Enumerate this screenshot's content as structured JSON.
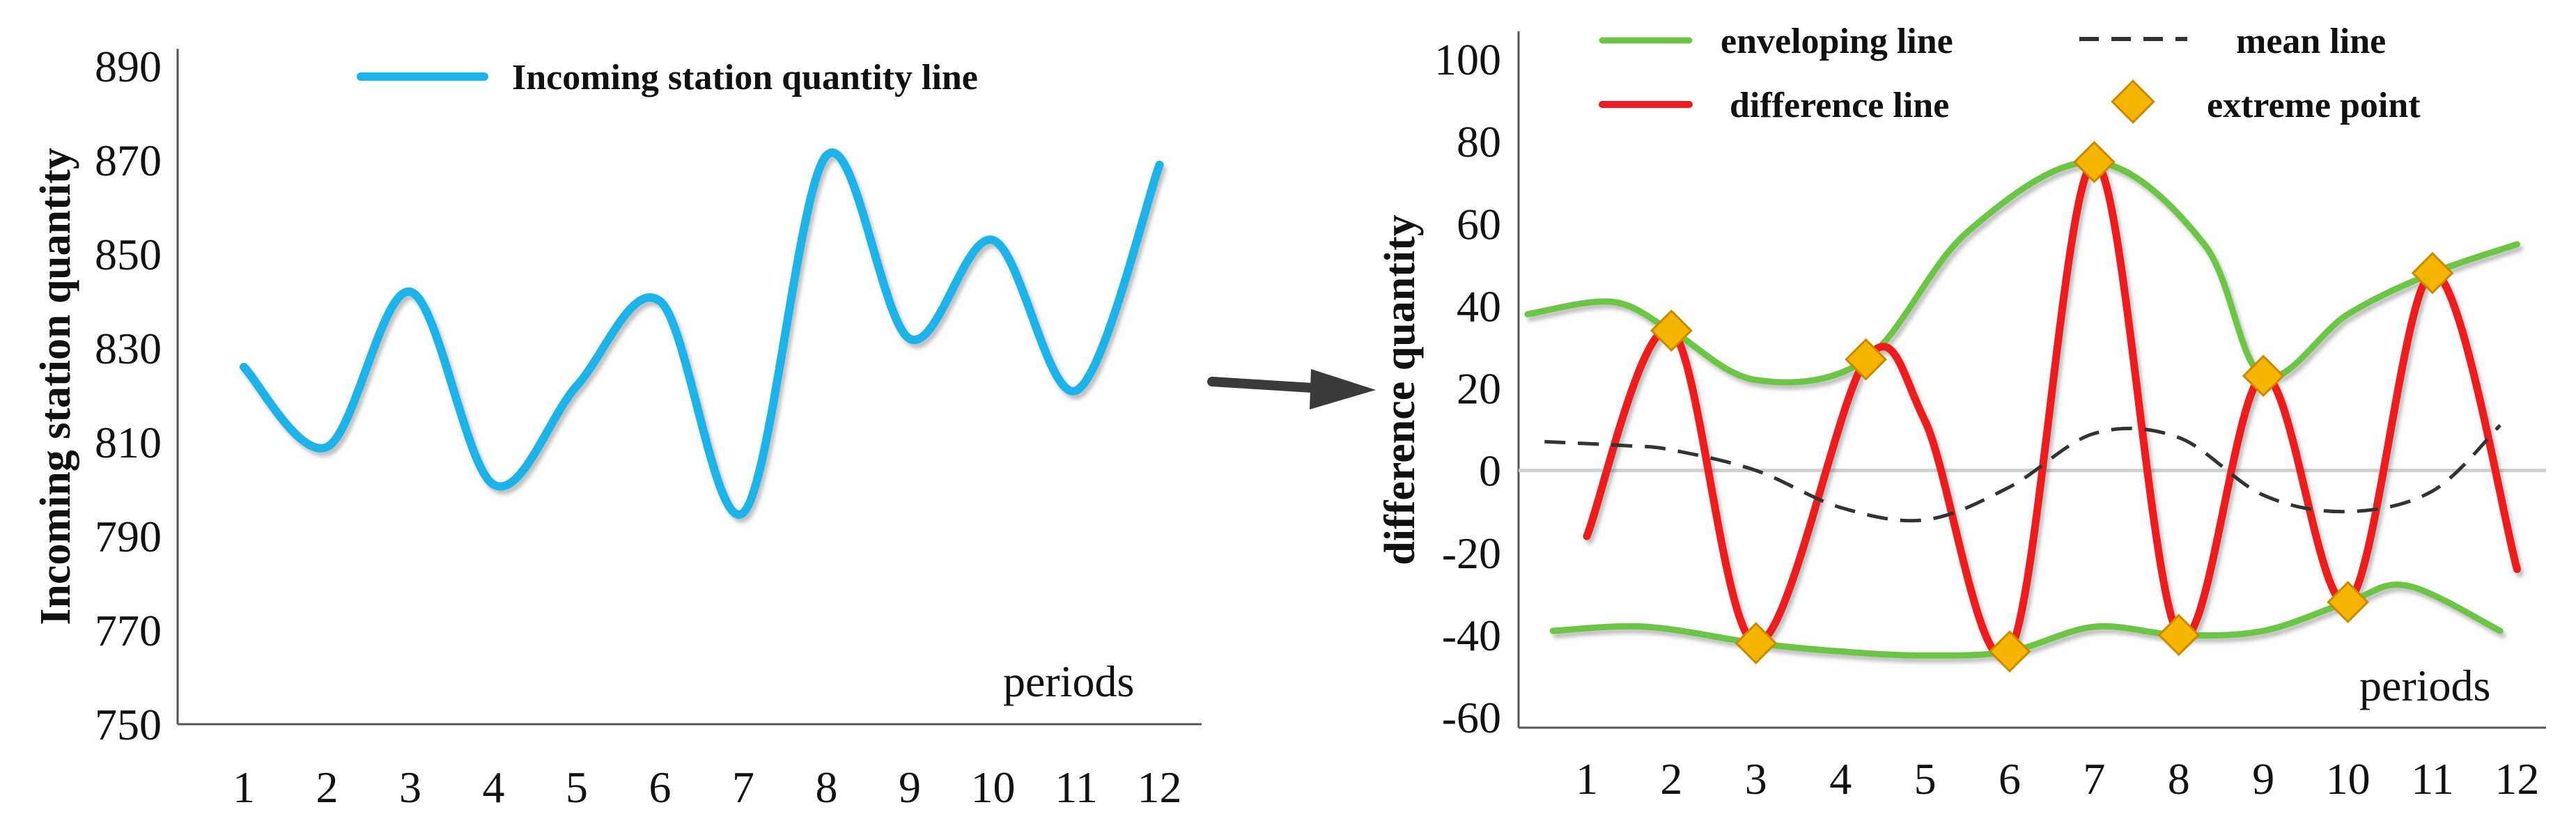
{
  "colors": {
    "incoming": "#1ab3ea",
    "envelope": "#6cc644",
    "difference": "#ee1c1c",
    "mean": "#333333",
    "extreme": "#f5b400",
    "extreme_stroke": "#c98a00",
    "arrow": "#3a3a3a"
  },
  "chart_data": [
    {
      "type": "line",
      "title": "",
      "xlabel": "periods",
      "ylabel": "Incoming station quantity",
      "categories": [
        "1",
        "2",
        "3",
        "4",
        "5",
        "6",
        "7",
        "8",
        "9",
        "10",
        "11",
        "12"
      ],
      "yticks": [
        "750",
        "770",
        "790",
        "810",
        "830",
        "850",
        "870",
        "890"
      ],
      "ylim": [
        750,
        890
      ],
      "legend_position": "top-center",
      "series": [
        {
          "name": "Incoming station quantity line",
          "values": [
            826,
            809,
            842,
            801,
            822,
            840,
            795,
            871,
            832,
            853,
            821,
            869
          ]
        }
      ]
    },
    {
      "type": "line",
      "title": "",
      "xlabel": "periods",
      "ylabel": "difference quantity",
      "categories": [
        "1",
        "2",
        "3",
        "4",
        "5",
        "6",
        "7",
        "8",
        "9",
        "10",
        "11",
        "12"
      ],
      "yticks": [
        "-60",
        "-40",
        "-20",
        "0",
        "20",
        "40",
        "60",
        "80",
        "100"
      ],
      "ylim": [
        -60,
        100
      ],
      "legend_position": "top",
      "legend": [
        "enveloping line",
        "mean line",
        "difference line",
        "extreme point"
      ],
      "series": [
        {
          "name": "difference line",
          "x": [
            1,
            2,
            3,
            4.3,
            5,
            6,
            7,
            8,
            9,
            10,
            11,
            12
          ],
          "values": [
            -16,
            34,
            -42,
            27,
            12,
            -44,
            75,
            -40,
            23,
            -32,
            48,
            -24
          ]
        },
        {
          "name": "enveloping line (upper)",
          "x": [
            0.3,
            1.3,
            2,
            3,
            4.3,
            5.5,
            7,
            8.3,
            9,
            10,
            11,
            12
          ],
          "values": [
            38,
            41,
            34,
            22,
            27,
            58,
            75,
            55,
            23,
            38,
            48,
            55
          ]
        },
        {
          "name": "enveloping line (lower)",
          "x": [
            0.6,
            1.7,
            3,
            4,
            5,
            6,
            7,
            8,
            9,
            10,
            10.7,
            11.8
          ],
          "values": [
            -39,
            -38,
            -42,
            -44,
            -45,
            -44,
            -38,
            -40,
            -39,
            -32,
            -28,
            -39
          ]
        },
        {
          "name": "mean line",
          "x": [
            0.5,
            1.5,
            2,
            3,
            4,
            5,
            6,
            7,
            8,
            9,
            10,
            11,
            11.8
          ],
          "values": [
            7,
            6,
            5,
            0,
            -9,
            -12,
            -4,
            9,
            8,
            -6,
            -10,
            -5,
            11
          ]
        },
        {
          "name": "extreme point",
          "x": [
            2,
            3,
            4.3,
            6,
            7,
            8,
            9,
            10,
            11
          ],
          "values": [
            34,
            -42,
            27,
            -44,
            75,
            -40,
            23,
            -32,
            48
          ]
        }
      ]
    }
  ]
}
